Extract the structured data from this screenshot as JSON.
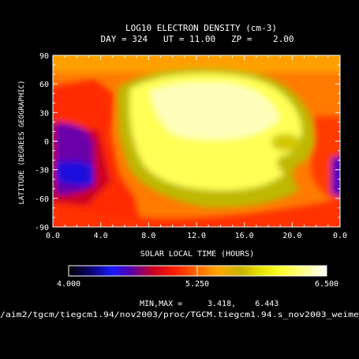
{
  "chart_data": {
    "type": "heatmap",
    "title": "LOG10 ELECTRON DENSITY (cm-3)",
    "subtitle": "DAY = 324   UT = 11.00   ZP =    2.00",
    "xlabel": "SOLAR LOCAL TIME (HOURS)",
    "ylabel": "LATITUDE (DEGREES GEOGRAPHIC)",
    "x_ticks": [
      "0.0",
      "4.0",
      "8.0",
      "12.0",
      "16.0",
      "20.0",
      "0.0"
    ],
    "y_ticks": [
      "90",
      "60",
      "30",
      "0",
      "-30",
      "-60",
      "-90"
    ],
    "xlim": [
      0,
      24
    ],
    "ylim": [
      -90,
      90
    ],
    "colorbar": {
      "min_label": "4.000",
      "mid_label": "5.250",
      "max_label": "6.500",
      "range": [
        4.0,
        6.5
      ]
    },
    "minmax_label": "MIN,MAX =",
    "minmax_values": "3.418,    6.443",
    "min": 3.418,
    "max": 6.443,
    "footer_path": "/aim2/tgcm/tiegcm1.94/nov2003/proc/TGCM.tiegcm1.94.s_nov2003_weime"
  },
  "colors": {
    "background": "#000000",
    "text": "#ffffff"
  }
}
